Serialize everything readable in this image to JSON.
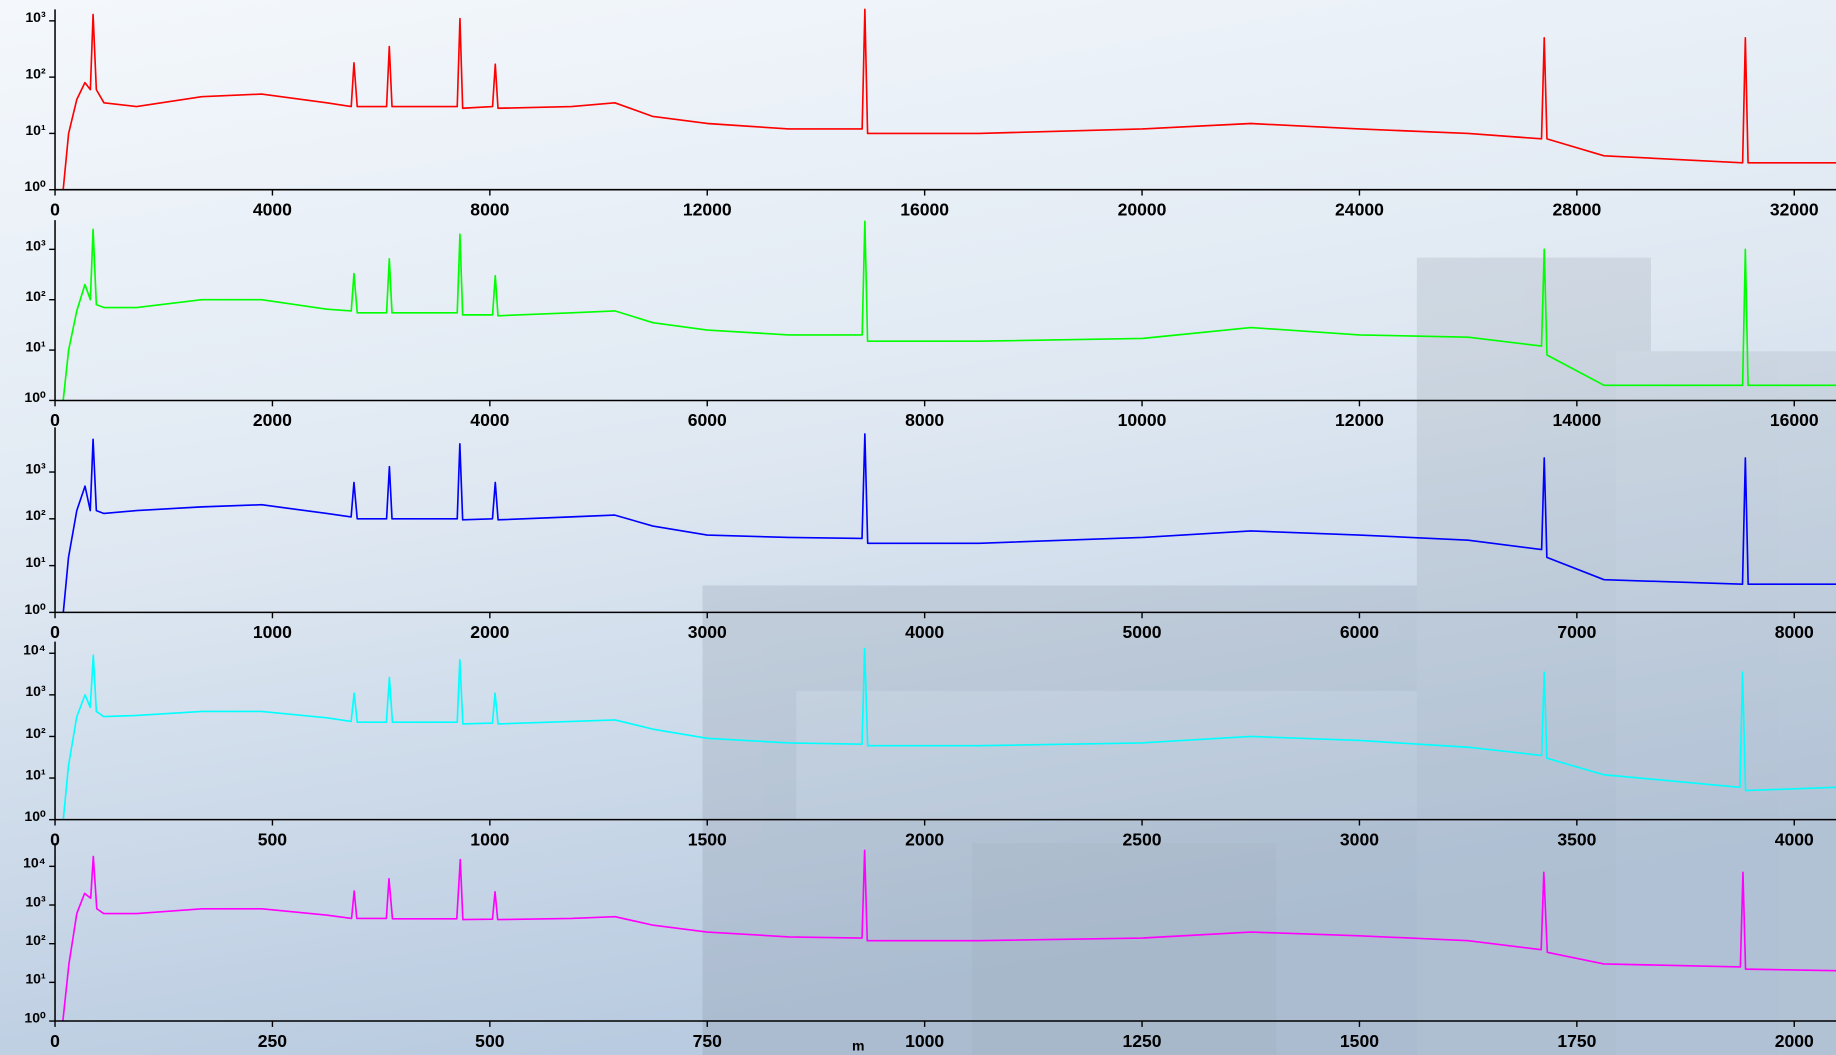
{
  "chart_data": [
    {
      "type": "line",
      "yscale": "log",
      "xlim": [
        0,
        32768
      ],
      "ylim": [
        1,
        1600
      ],
      "xticks": [
        0,
        4000,
        8000,
        12000,
        16000,
        20000,
        24000,
        28000,
        32000
      ],
      "yticks": [
        {
          "value": 1,
          "label": "10⁰"
        },
        {
          "value": 10,
          "label": "10¹"
        },
        {
          "value": 100,
          "label": "10²"
        },
        {
          "value": 1000,
          "label": "10³"
        }
      ],
      "x": [
        150,
        250,
        400,
        550,
        650,
        700,
        760,
        900,
        1500,
        2700,
        3800,
        5000,
        5450,
        5500,
        5560,
        6100,
        6150,
        6200,
        7400,
        7450,
        7500,
        8050,
        8100,
        8150,
        9500,
        10300,
        11000,
        12000,
        13500,
        14850,
        14900,
        14950,
        17000,
        20000,
        22000,
        24000,
        26000,
        27350,
        27400,
        27450,
        28500,
        31050,
        31100,
        31150,
        32768
      ],
      "series": [
        {
          "color": "#ff0000",
          "values": [
            1,
            10,
            40,
            80,
            60,
            1300,
            60,
            35,
            30,
            45,
            50,
            35,
            30,
            180,
            30,
            30,
            350,
            30,
            30,
            1100,
            28,
            30,
            170,
            28,
            30,
            35,
            20,
            15,
            12,
            12,
            1600,
            10,
            10,
            12,
            15,
            12,
            10,
            8,
            500,
            8,
            4,
            3,
            500,
            3,
            3
          ]
        }
      ]
    },
    {
      "type": "line",
      "yscale": "log",
      "xlim": [
        0,
        16384
      ],
      "ylim": [
        1,
        3800
      ],
      "xticks": [
        0,
        2000,
        4000,
        6000,
        8000,
        10000,
        12000,
        14000,
        16000
      ],
      "yticks": [
        {
          "value": 1,
          "label": "10⁰"
        },
        {
          "value": 10,
          "label": "10¹"
        },
        {
          "value": 100,
          "label": "10²"
        },
        {
          "value": 1000,
          "label": "10³"
        }
      ],
      "x": [
        75,
        125,
        200,
        275,
        325,
        350,
        380,
        450,
        750,
        1350,
        1900,
        2500,
        2725,
        2750,
        2780,
        3050,
        3075,
        3100,
        3700,
        3725,
        3750,
        4025,
        4050,
        4075,
        4750,
        5150,
        5500,
        6000,
        6750,
        7425,
        7450,
        7475,
        8500,
        10000,
        11000,
        12000,
        13000,
        13675,
        13700,
        13725,
        14250,
        15525,
        15550,
        15575,
        16384
      ],
      "series": [
        {
          "color": "#00ff00",
          "values": [
            1,
            10,
            60,
            200,
            100,
            2500,
            80,
            70,
            70,
            100,
            100,
            65,
            60,
            330,
            55,
            55,
            650,
            55,
            55,
            2000,
            50,
            50,
            300,
            48,
            55,
            60,
            35,
            25,
            20,
            20,
            3600,
            15,
            15,
            17,
            28,
            20,
            18,
            12,
            1000,
            8,
            2,
            2,
            1000,
            2,
            2
          ]
        }
      ]
    },
    {
      "type": "line",
      "yscale": "log",
      "xlim": [
        0,
        8192
      ],
      "ylim": [
        1,
        9000
      ],
      "xticks": [
        0,
        1000,
        2000,
        3000,
        4000,
        5000,
        6000,
        7000,
        8000
      ],
      "yticks": [
        {
          "value": 1,
          "label": "10⁰"
        },
        {
          "value": 10,
          "label": "10¹"
        },
        {
          "value": 100,
          "label": "10²"
        },
        {
          "value": 1000,
          "label": "10³"
        }
      ],
      "x": [
        38,
        62,
        100,
        138,
        162,
        175,
        190,
        225,
        375,
        675,
        950,
        1250,
        1362,
        1375,
        1390,
        1525,
        1538,
        1550,
        1850,
        1862,
        1875,
        2012,
        2025,
        2038,
        2375,
        2575,
        2750,
        3000,
        3375,
        3712,
        3725,
        3738,
        4250,
        5000,
        5500,
        6000,
        6500,
        6838,
        6850,
        6862,
        7125,
        7762,
        7775,
        7788,
        8192
      ],
      "series": [
        {
          "color": "#0000ff",
          "values": [
            1,
            15,
            150,
            500,
            150,
            5000,
            150,
            130,
            150,
            180,
            200,
            130,
            110,
            600,
            100,
            100,
            1300,
            100,
            100,
            4000,
            95,
            100,
            600,
            95,
            110,
            120,
            70,
            45,
            40,
            38,
            6500,
            30,
            30,
            40,
            55,
            45,
            35,
            22,
            2000,
            15,
            5,
            4,
            2000,
            4,
            4
          ]
        }
      ]
    },
    {
      "type": "line",
      "yscale": "log",
      "xlim": [
        0,
        4096
      ],
      "ylim": [
        1,
        19000
      ],
      "xticks": [
        0,
        500,
        1000,
        1500,
        2000,
        2500,
        3000,
        3500,
        4000
      ],
      "yticks": [
        {
          "value": 1,
          "label": "10⁰"
        },
        {
          "value": 10,
          "label": "10¹"
        },
        {
          "value": 100,
          "label": "10²"
        },
        {
          "value": 1000,
          "label": "10³"
        },
        {
          "value": 10000,
          "label": "10⁴"
        }
      ],
      "x": [
        19,
        31,
        50,
        69,
        81,
        88,
        95,
        112,
        188,
        338,
        475,
        625,
        681,
        688,
        695,
        762,
        769,
        776,
        925,
        931,
        938,
        1006,
        1012,
        1019,
        1188,
        1288,
        1375,
        1500,
        1688,
        1856,
        1862,
        1869,
        2125,
        2500,
        2750,
        3000,
        3250,
        3419,
        3425,
        3431,
        3562,
        3875,
        3881,
        3888,
        4096
      ],
      "series": [
        {
          "color": "#00ffff",
          "values": [
            1,
            20,
            300,
            1000,
            500,
            9000,
            400,
            300,
            320,
            400,
            400,
            280,
            230,
            1100,
            220,
            220,
            2600,
            220,
            220,
            7000,
            200,
            210,
            1100,
            200,
            230,
            250,
            150,
            90,
            70,
            65,
            13000,
            60,
            60,
            70,
            100,
            80,
            55,
            35,
            3500,
            30,
            12,
            6,
            3500,
            5,
            6
          ]
        }
      ]
    },
    {
      "type": "line",
      "yscale": "log",
      "xlim": [
        0,
        2048
      ],
      "ylim": [
        1,
        40000
      ],
      "xlabel": "m",
      "xticks": [
        0,
        250,
        500,
        750,
        1000,
        1250,
        1500,
        1750,
        2000
      ],
      "yticks": [
        {
          "value": 1,
          "label": "10⁰"
        },
        {
          "value": 10,
          "label": "10¹"
        },
        {
          "value": 100,
          "label": "10²"
        },
        {
          "value": 1000,
          "label": "10³"
        },
        {
          "value": 10000,
          "label": "10⁴"
        }
      ],
      "x": [
        9,
        16,
        25,
        34,
        41,
        44,
        48,
        56,
        94,
        169,
        238,
        312,
        341,
        344,
        347,
        381,
        384,
        388,
        462,
        466,
        469,
        503,
        506,
        509,
        594,
        644,
        688,
        750,
        844,
        928,
        931,
        934,
        1062,
        1250,
        1375,
        1500,
        1625,
        1709,
        1712,
        1716,
        1781,
        1938,
        1941,
        1944,
        2048
      ],
      "series": [
        {
          "color": "#ff00ff",
          "values": [
            1,
            30,
            600,
            2000,
            1500,
            18000,
            800,
            600,
            600,
            800,
            800,
            550,
            450,
            2300,
            450,
            450,
            4800,
            440,
            440,
            15000,
            420,
            430,
            2200,
            420,
            450,
            500,
            300,
            200,
            150,
            140,
            26000,
            120,
            120,
            140,
            200,
            160,
            120,
            70,
            7000,
            60,
            30,
            25,
            7000,
            22,
            20
          ]
        }
      ]
    }
  ]
}
